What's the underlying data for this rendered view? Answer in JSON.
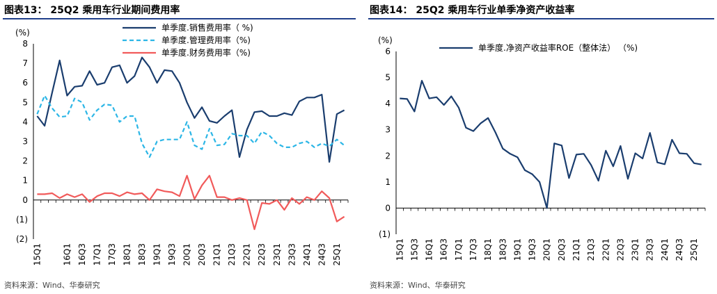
{
  "left": {
    "title": "图表13： 25Q2 乘用车行业期间费用率",
    "source": "资料来源：Wind、华泰研究"
  },
  "right": {
    "title": "图表14： 25Q2 乘用车行业单季净资产收益率",
    "source": "资料来源：Wind、华泰研究"
  },
  "colors": {
    "navy": "#1a3d6e",
    "cyan": "#2cb6e6",
    "red": "#f15a5a",
    "rule": "#1f3f8a"
  },
  "chart_data": [
    {
      "type": "line",
      "y_unit_label": "(%)",
      "ylim": [
        -2,
        8
      ],
      "yticks": [
        "(2)",
        "(1)",
        "0",
        "1",
        "2",
        "3",
        "4",
        "5",
        "6",
        "7",
        "8"
      ],
      "ytick_values": [
        -2,
        -1,
        0,
        1,
        2,
        3,
        4,
        5,
        6,
        7,
        8
      ],
      "xtick_labels": [
        "15Q1",
        "16Q1",
        "16Q3",
        "17Q1",
        "17Q3",
        "18Q1",
        "18Q3",
        "19Q1",
        "19Q3",
        "20Q1",
        "20Q3",
        "21Q1",
        "21Q3",
        "22Q1",
        "22Q3",
        "23Q1",
        "23Q3",
        "24Q1",
        "24Q3",
        "25Q1"
      ],
      "xtick_index": [
        0,
        4,
        6,
        8,
        10,
        12,
        14,
        16,
        18,
        20,
        22,
        24,
        26,
        28,
        30,
        32,
        34,
        36,
        38,
        40
      ],
      "num_points": 42,
      "legend_position": "top-right",
      "series": [
        {
          "name": "单季度.销售费用率（ %)",
          "color": "#1a3d6e",
          "dash": "solid",
          "values": [
            4.3,
            3.8,
            5.5,
            7.15,
            5.35,
            5.8,
            5.85,
            6.6,
            5.9,
            6.0,
            6.8,
            6.9,
            6.0,
            6.35,
            7.3,
            6.8,
            6.0,
            6.65,
            6.6,
            6.0,
            5.0,
            4.2,
            4.75,
            4.05,
            3.95,
            4.3,
            4.6,
            2.2,
            3.6,
            4.5,
            4.55,
            4.3,
            4.3,
            4.45,
            4.35,
            5.05,
            5.25,
            5.25,
            5.4,
            1.95,
            4.4,
            4.6
          ]
        },
        {
          "name": "单季度.管理费用率（%)",
          "color": "#2cb6e6",
          "dash": "dashed",
          "values": [
            4.4,
            5.35,
            4.7,
            4.25,
            4.3,
            5.2,
            5.0,
            4.1,
            4.6,
            4.9,
            4.85,
            4.0,
            4.3,
            4.3,
            2.9,
            2.2,
            3.0,
            3.1,
            3.1,
            3.1,
            4.0,
            2.8,
            2.6,
            3.65,
            2.8,
            2.85,
            3.4,
            3.3,
            3.3,
            2.9,
            3.5,
            3.3,
            2.9,
            2.7,
            2.7,
            2.9,
            3.0,
            2.7,
            2.9,
            2.75,
            3.1,
            2.8
          ]
        },
        {
          "name": "单季度.财务费用率（%)",
          "color": "#f15a5a",
          "dash": "solid",
          "values": [
            0.3,
            0.3,
            0.35,
            0.1,
            0.3,
            0.15,
            0.3,
            -0.1,
            0.2,
            0.35,
            0.35,
            0.2,
            0.4,
            0.3,
            0.35,
            0.0,
            0.55,
            0.45,
            0.4,
            0.2,
            1.25,
            0.05,
            0.75,
            1.25,
            0.15,
            0.15,
            0.0,
            0.1,
            0.0,
            -1.5,
            -0.15,
            -0.2,
            0.0,
            -0.5,
            0.1,
            -0.2,
            0.15,
            0.0,
            0.45,
            0.1,
            -1.1,
            -0.85
          ]
        }
      ]
    },
    {
      "type": "line",
      "y_unit_label": "(%)",
      "ylim": [
        -1,
        6
      ],
      "yticks": [
        "(1)",
        "0",
        "1",
        "2",
        "3",
        "4",
        "5",
        "6"
      ],
      "ytick_values": [
        -1,
        0,
        1,
        2,
        3,
        4,
        5,
        6
      ],
      "xtick_labels": [
        "15Q1",
        "15Q3",
        "16Q1",
        "16Q3",
        "17Q1",
        "17Q3",
        "18Q1",
        "18Q3",
        "19Q1",
        "19Q3",
        "20Q1",
        "20Q3",
        "21Q1",
        "21Q3",
        "22Q1",
        "22Q3",
        "23Q1",
        "23Q3",
        "24Q1",
        "24Q3",
        "25Q1"
      ],
      "xtick_index": [
        0,
        2,
        4,
        6,
        8,
        10,
        12,
        14,
        16,
        18,
        20,
        22,
        24,
        26,
        28,
        30,
        32,
        34,
        36,
        38,
        40
      ],
      "num_points": 42,
      "legend_position": "top-left",
      "series": [
        {
          "name": "单季度.净资产收益率ROE（整体法） （%)",
          "color": "#1a3d6e",
          "dash": "solid",
          "values": [
            4.2,
            4.18,
            3.7,
            4.88,
            4.2,
            4.25,
            3.95,
            4.28,
            3.85,
            3.08,
            2.95,
            3.25,
            3.45,
            2.9,
            2.28,
            2.08,
            1.95,
            1.45,
            1.3,
            1.0,
            0.0,
            2.48,
            2.4,
            1.15,
            2.05,
            2.08,
            1.65,
            1.05,
            2.2,
            1.6,
            2.38,
            1.12,
            2.1,
            1.9,
            2.88,
            1.75,
            1.68,
            2.62,
            2.1,
            2.08,
            1.72,
            1.67
          ]
        }
      ]
    }
  ]
}
